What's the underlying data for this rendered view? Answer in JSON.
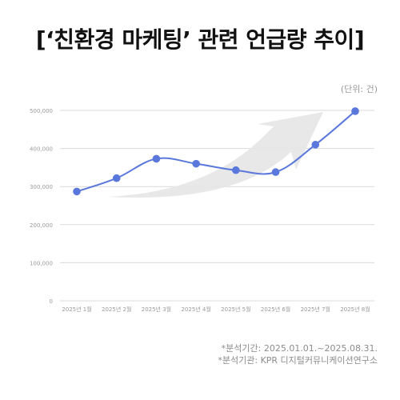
{
  "title": "[‘친환경 마케팅’ 관련 언급량 추이]",
  "unit_label": "(단위: 건)",
  "notes": {
    "period": "*분석기간: 2025.01.01.~2025.08.31.",
    "source": "*분석기관: KPR 디지털커뮤니케이션연구소"
  },
  "colors": {
    "line": "#5a78dc",
    "arrow": "#e6e6e6",
    "grid": "#d9d9d9",
    "axis_text": "#9a9a9a"
  },
  "chart_data": {
    "type": "line",
    "title": "[‘친환경 마케팅’ 관련 언급량 추이]",
    "xlabel": "",
    "ylabel": "(단위: 건)",
    "categories": [
      "2025년 1월",
      "2025년 2월",
      "2025년 3월",
      "2025년 4월",
      "2025년 5월",
      "2025년 6월",
      "2025년 7월",
      "2025년 8월"
    ],
    "series": [
      {
        "values": [
          287000,
          322000,
          373000,
          360000,
          343000,
          338000,
          410000,
          498000
        ]
      }
    ],
    "ylim": [
      0,
      500000
    ],
    "yticks": [
      0,
      100000,
      200000,
      300000,
      400000,
      500000
    ],
    "ytick_labels": [
      "0",
      "100,000",
      "200,000",
      "300,000",
      "400,000",
      "500,000"
    ],
    "grid": true,
    "smooth": true,
    "legend": "none"
  }
}
